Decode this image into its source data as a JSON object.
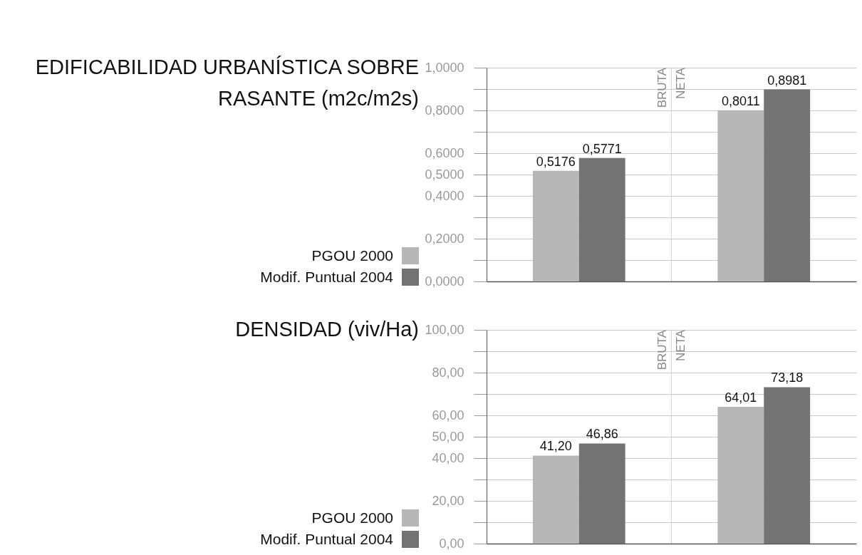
{
  "chart_data": [
    {
      "type": "bar",
      "title": "EDIFICABILIDAD URBANÍSTICA SOBRE RASANTE (m2c/m2s)",
      "categories": [
        null,
        null
      ],
      "series": [
        {
          "name": "PGOU 2000",
          "color": "#b7b7b7",
          "values": [
            0.5176,
            0.8011
          ],
          "value_labels": [
            "0,5176",
            "0,8011"
          ]
        },
        {
          "name": "Modif. Puntual 2004",
          "color": "#737373",
          "values": [
            0.5771,
            0.8981
          ],
          "value_labels": [
            "0,5771",
            "0,8981"
          ]
        }
      ],
      "ylim": [
        0,
        1
      ],
      "yticks": [
        {
          "value": 0,
          "label": "0,0000"
        },
        {
          "value": 0.1,
          "label": null
        },
        {
          "value": 0.2,
          "label": "0,2000"
        },
        {
          "value": 0.3,
          "label": null
        },
        {
          "value": 0.4,
          "label": "0,4000"
        },
        {
          "value": 0.5,
          "label": "0,5000"
        },
        {
          "value": 0.6,
          "label": "0,6000"
        },
        {
          "value": 0.7,
          "label": null
        },
        {
          "value": 0.8,
          "label": "0,8000"
        },
        {
          "value": 0.9,
          "label": null
        },
        {
          "value": 1,
          "label": "1,0000"
        }
      ],
      "grid": true,
      "legend": "left",
      "annotations": [
        "BRUTA",
        "NETA"
      ]
    },
    {
      "type": "bar",
      "title": "DENSIDAD (viv/Ha)",
      "categories": [
        null,
        null
      ],
      "series": [
        {
          "name": "PGOU 2000",
          "color": "#b7b7b7",
          "values": [
            41.2,
            64.01
          ],
          "value_labels": [
            "41,20",
            "64,01"
          ]
        },
        {
          "name": "Modif. Puntual 2004",
          "color": "#737373",
          "values": [
            46.86,
            73.18
          ],
          "value_labels": [
            "46,86",
            "73,18"
          ]
        }
      ],
      "ylim": [
        0,
        100
      ],
      "yticks": [
        {
          "value": 0,
          "label": "0,00"
        },
        {
          "value": 10,
          "label": null
        },
        {
          "value": 20,
          "label": "20,00"
        },
        {
          "value": 30,
          "label": null
        },
        {
          "value": 40,
          "label": "40,00"
        },
        {
          "value": 50,
          "label": "50,00"
        },
        {
          "value": 60,
          "label": "60,00"
        },
        {
          "value": 70,
          "label": null
        },
        {
          "value": 80,
          "label": "80,00"
        },
        {
          "value": 90,
          "label": null
        },
        {
          "value": 100,
          "label": "100,00"
        }
      ],
      "grid": true,
      "legend": "left",
      "annotations": [
        "BRUTA",
        "NETA"
      ]
    }
  ]
}
